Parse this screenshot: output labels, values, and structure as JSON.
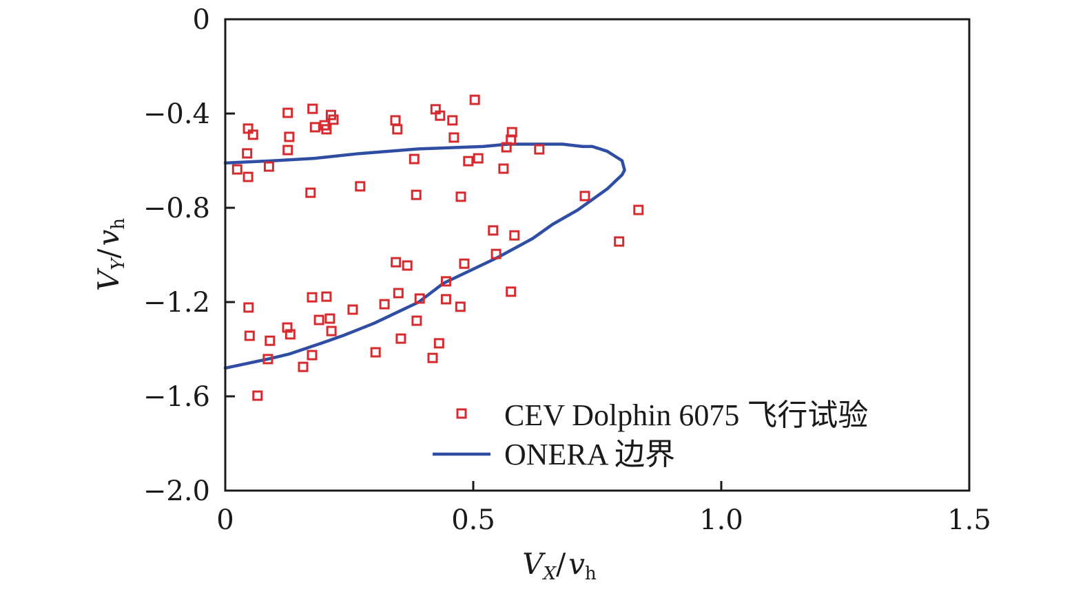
{
  "chart_data": {
    "type": "scatter",
    "title": "",
    "xlabel": {
      "main": "V",
      "sub": "X",
      "sep": "/",
      "main2": "v",
      "sub2": "h"
    },
    "ylabel": {
      "main": "V",
      "sub": "Y",
      "sep": "/",
      "main2": "v",
      "sub2": "h"
    },
    "xlim": [
      0,
      1.5
    ],
    "ylim": [
      -2.0,
      0
    ],
    "xticks": [
      {
        "value": 0,
        "label": "0"
      },
      {
        "value": 0.5,
        "label": "0.5"
      },
      {
        "value": 1.0,
        "label": "1.0"
      },
      {
        "value": 1.5,
        "label": "1.5"
      }
    ],
    "yticks": [
      {
        "value": 0,
        "label": "0"
      },
      {
        "value": -0.4,
        "label": "−0.4"
      },
      {
        "value": -0.8,
        "label": "−0.8"
      },
      {
        "value": -1.2,
        "label": "−1.2"
      },
      {
        "value": -1.6,
        "label": "−1.6"
      },
      {
        "value": -2.0,
        "label": "−2.0"
      }
    ],
    "grid": false,
    "legend_position": "bottom-right",
    "series": [
      {
        "name": "CEV Dolphin 6075 飞行试验",
        "kind": "scatter",
        "marker": "open-square",
        "color": "#d62a2e",
        "points": [
          [
            0.024,
            -0.637
          ],
          [
            0.046,
            -0.464
          ],
          [
            0.056,
            -0.49
          ],
          [
            0.044,
            -0.569
          ],
          [
            0.046,
            -0.669
          ],
          [
            0.088,
            -0.625
          ],
          [
            0.126,
            -0.397
          ],
          [
            0.129,
            -0.499
          ],
          [
            0.126,
            -0.555
          ],
          [
            0.176,
            -0.38
          ],
          [
            0.181,
            -0.458
          ],
          [
            0.2,
            -0.45
          ],
          [
            0.204,
            -0.467
          ],
          [
            0.213,
            -0.406
          ],
          [
            0.218,
            -0.426
          ],
          [
            0.172,
            -0.736
          ],
          [
            0.272,
            -0.709
          ],
          [
            0.343,
            -0.429
          ],
          [
            0.347,
            -0.467
          ],
          [
            0.381,
            -0.593
          ],
          [
            0.385,
            -0.745
          ],
          [
            0.424,
            -0.382
          ],
          [
            0.433,
            -0.409
          ],
          [
            0.458,
            -0.429
          ],
          [
            0.461,
            -0.502
          ],
          [
            0.49,
            -0.602
          ],
          [
            0.51,
            -0.59
          ],
          [
            0.503,
            -0.342
          ],
          [
            0.475,
            -0.753
          ],
          [
            0.578,
            -0.479
          ],
          [
            0.576,
            -0.511
          ],
          [
            0.567,
            -0.543
          ],
          [
            0.633,
            -0.552
          ],
          [
            0.561,
            -0.634
          ],
          [
            0.725,
            -0.75
          ],
          [
            0.833,
            -0.809
          ],
          [
            0.794,
            -0.943
          ],
          [
            0.54,
            -0.896
          ],
          [
            0.546,
            -0.996
          ],
          [
            0.583,
            -0.917
          ],
          [
            0.576,
            -1.156
          ],
          [
            0.047,
            -1.223
          ],
          [
            0.049,
            -1.343
          ],
          [
            0.065,
            -1.597
          ],
          [
            0.09,
            -1.364
          ],
          [
            0.086,
            -1.442
          ],
          [
            0.125,
            -1.308
          ],
          [
            0.131,
            -1.337
          ],
          [
            0.157,
            -1.475
          ],
          [
            0.175,
            -1.18
          ],
          [
            0.175,
            -1.425
          ],
          [
            0.189,
            -1.276
          ],
          [
            0.204,
            -1.177
          ],
          [
            0.211,
            -1.27
          ],
          [
            0.214,
            -1.323
          ],
          [
            0.257,
            -1.232
          ],
          [
            0.303,
            -1.413
          ],
          [
            0.321,
            -1.209
          ],
          [
            0.344,
            -1.031
          ],
          [
            0.367,
            -1.045
          ],
          [
            0.349,
            -1.162
          ],
          [
            0.354,
            -1.355
          ],
          [
            0.392,
            -1.185
          ],
          [
            0.386,
            -1.279
          ],
          [
            0.418,
            -1.437
          ],
          [
            0.431,
            -1.375
          ],
          [
            0.445,
            -1.112
          ],
          [
            0.445,
            -1.188
          ],
          [
            0.474,
            -1.22
          ],
          [
            0.482,
            -1.037
          ]
        ]
      },
      {
        "name": "ONERA 边界",
        "kind": "line",
        "color": "#2f4ea3",
        "points": [
          [
            0,
            -0.61
          ],
          [
            0.1,
            -0.6
          ],
          [
            0.18,
            -0.59
          ],
          [
            0.27,
            -0.57
          ],
          [
            0.39,
            -0.55
          ],
          [
            0.52,
            -0.54
          ],
          [
            0.57,
            -0.53
          ],
          [
            0.68,
            -0.53
          ],
          [
            0.72,
            -0.54
          ],
          [
            0.74,
            -0.54
          ],
          [
            0.77,
            -0.56
          ],
          [
            0.8,
            -0.6
          ],
          [
            0.805,
            -0.64
          ],
          [
            0.8,
            -0.66
          ],
          [
            0.77,
            -0.72
          ],
          [
            0.73,
            -0.78
          ],
          [
            0.71,
            -0.81
          ],
          [
            0.66,
            -0.87
          ],
          [
            0.62,
            -0.93
          ],
          [
            0.55,
            -1.01
          ],
          [
            0.49,
            -1.07
          ],
          [
            0.44,
            -1.12
          ],
          [
            0.39,
            -1.2
          ],
          [
            0.35,
            -1.24
          ],
          [
            0.3,
            -1.29
          ],
          [
            0.24,
            -1.34
          ],
          [
            0.2,
            -1.37
          ],
          [
            0.13,
            -1.42
          ],
          [
            0.09,
            -1.44
          ],
          [
            0,
            -1.48
          ]
        ]
      }
    ]
  }
}
